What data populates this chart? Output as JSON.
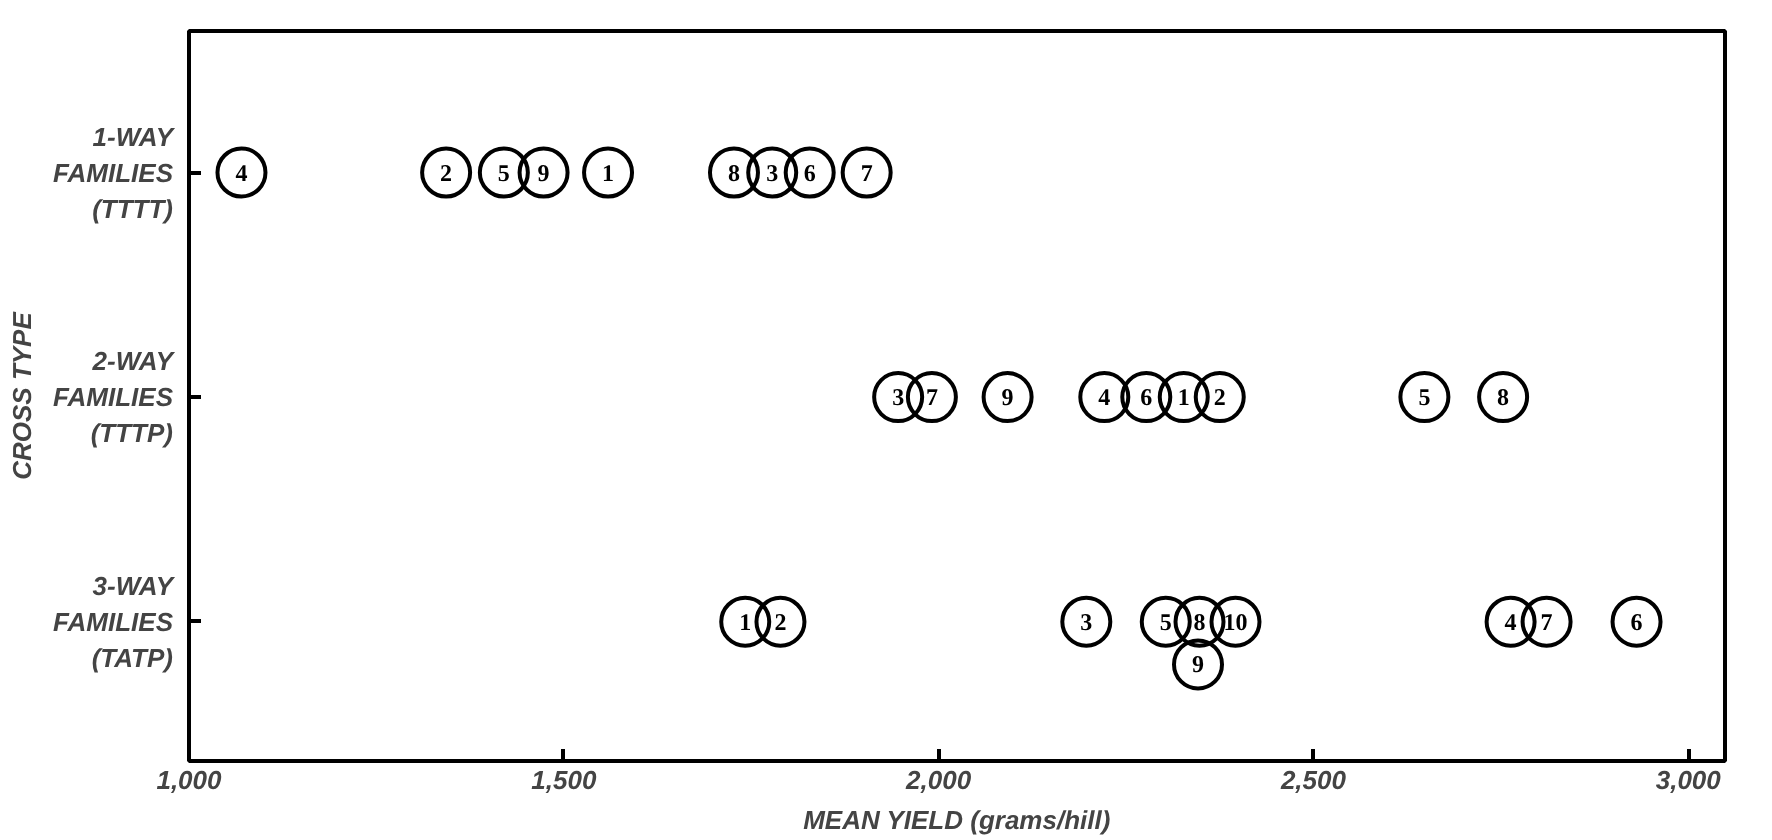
{
  "chart_data": {
    "type": "scatter",
    "orientation": "horizontal",
    "xlabel": "MEAN YIELD (grams/hill)",
    "ylabel": "CROSS TYPE",
    "categories": [
      "1-WAY\nFAMILIES\n(TTTT)",
      "2-WAY\nFAMILIES\n(TTTP)",
      "3-WAY\nFAMILIES\n(TATP)"
    ],
    "xlim": [
      1000,
      3049
    ],
    "xticks": [
      {
        "value": 1000,
        "label": "1,000"
      },
      {
        "value": 1500,
        "label": "1,500"
      },
      {
        "value": 2000,
        "label": "2,000"
      },
      {
        "value": 2500,
        "label": "2,500"
      },
      {
        "value": 3000,
        "label": "3,000"
      }
    ],
    "marker": "circle",
    "grid": false,
    "series": [
      {
        "name": "1",
        "color": "#000000",
        "values": [
          1559,
          2327,
          1742
        ]
      },
      {
        "name": "2",
        "color": "#000000",
        "values": [
          1343,
          2375,
          1789
        ]
      },
      {
        "name": "3",
        "color": "#000000",
        "values": [
          1778,
          1946,
          2197
        ]
      },
      {
        "name": "4",
        "color": "#000000",
        "values": [
          1070,
          2221,
          2763
        ]
      },
      {
        "name": "5",
        "color": "#000000",
        "values": [
          1420,
          2648,
          2303
        ]
      },
      {
        "name": "6",
        "color": "#000000",
        "values": [
          1828,
          2277,
          2931
        ]
      },
      {
        "name": "7",
        "color": "#000000",
        "values": [
          1904,
          1991,
          2811
        ]
      },
      {
        "name": "8",
        "color": "#000000",
        "values": [
          1727,
          2753,
          2348
        ]
      },
      {
        "name": "9",
        "color": "#000000",
        "values": [
          1473,
          2092,
          2346
        ]
      },
      {
        "name": "10",
        "color": "#000000",
        "values": [
          null,
          null,
          2396
        ]
      }
    ]
  }
}
